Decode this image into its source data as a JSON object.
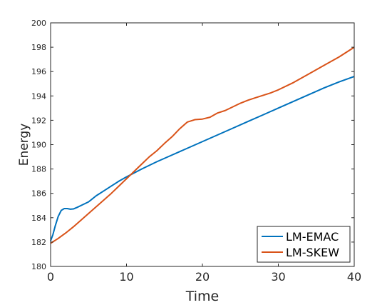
{
  "chart_data": {
    "type": "line",
    "title": "",
    "xlabel": "Time",
    "ylabel": "Energy",
    "xlim": [
      0,
      40
    ],
    "ylim": [
      180,
      200
    ],
    "xticks": [
      0,
      10,
      20,
      30,
      40
    ],
    "yticks": [
      180,
      182,
      184,
      186,
      188,
      190,
      192,
      194,
      196,
      198,
      200
    ],
    "grid": false,
    "legend_position": "bottom-right",
    "series": [
      {
        "name": "LM-EMAC",
        "color": "#0072BD",
        "x": [
          0,
          0.3,
          0.6,
          1.0,
          1.4,
          1.8,
          2.2,
          2.6,
          3.0,
          3.5,
          4,
          5,
          6,
          7,
          8,
          9,
          10,
          12,
          14,
          16,
          18,
          20,
          22,
          24,
          26,
          28,
          30,
          32,
          34,
          36,
          38,
          40
        ],
        "y": [
          182.1,
          182.6,
          183.3,
          184.1,
          184.6,
          184.75,
          184.75,
          184.7,
          184.72,
          184.85,
          185.0,
          185.3,
          185.8,
          186.2,
          186.6,
          187.0,
          187.35,
          188.0,
          188.6,
          189.15,
          189.7,
          190.25,
          190.8,
          191.35,
          191.9,
          192.45,
          193.0,
          193.55,
          194.1,
          194.65,
          195.15,
          195.6
        ]
      },
      {
        "name": "LM-SKEW",
        "color": "#D95319",
        "x": [
          0,
          1,
          2,
          3,
          4,
          5,
          6,
          7,
          8,
          9,
          10,
          11,
          12,
          13,
          14,
          15,
          16,
          17,
          18,
          19,
          20,
          21,
          22,
          23,
          24,
          25,
          26,
          27,
          28,
          29,
          30,
          32,
          34,
          36,
          38,
          40
        ],
        "y": [
          181.9,
          182.3,
          182.75,
          183.25,
          183.8,
          184.35,
          184.9,
          185.45,
          186.0,
          186.6,
          187.2,
          187.8,
          188.4,
          189.0,
          189.5,
          190.1,
          190.65,
          191.3,
          191.85,
          192.05,
          192.1,
          192.25,
          192.6,
          192.8,
          193.1,
          193.4,
          193.65,
          193.85,
          194.05,
          194.25,
          194.5,
          195.1,
          195.8,
          196.5,
          197.2,
          198.0
        ]
      }
    ]
  }
}
